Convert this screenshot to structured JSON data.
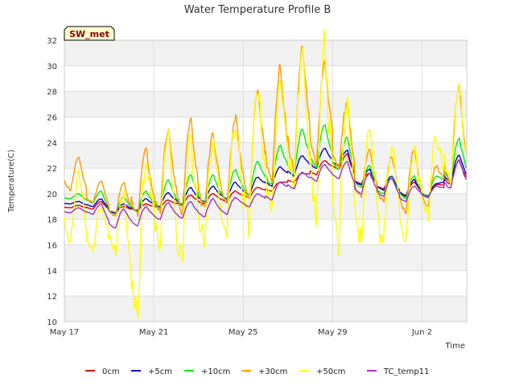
{
  "chart_data": {
    "type": "line",
    "title": "Water Temperature Profile B",
    "xlabel": "Time",
    "ylabel": "Temperature(C)",
    "badge": "SW_met",
    "ylim": [
      10,
      32
    ],
    "yticks": [
      10,
      12,
      14,
      16,
      18,
      20,
      22,
      24,
      26,
      28,
      30,
      32
    ],
    "xlim": [
      "2016-05-17",
      "2016-06-04"
    ],
    "xticks": [
      {
        "date": "2016-05-17",
        "label": "May 17"
      },
      {
        "date": "2016-05-21",
        "label": "May 21"
      },
      {
        "date": "2016-05-25",
        "label": "May 25"
      },
      {
        "date": "2016-05-29",
        "label": "May 29"
      },
      {
        "date": "2016-06-02",
        "label": "Jun 2"
      }
    ],
    "grid": true,
    "legend_position": "bottom",
    "x": [
      "2016-05-17",
      "2016-05-18",
      "2016-05-19",
      "2016-05-20",
      "2016-05-21",
      "2016-05-22",
      "2016-05-23",
      "2016-05-24",
      "2016-05-25",
      "2016-05-26",
      "2016-05-27",
      "2016-05-28",
      "2016-05-29",
      "2016-05-30",
      "2016-05-31",
      "2016-06-01",
      "2016-06-02",
      "2016-06-03"
    ],
    "series": [
      {
        "name": "0cm",
        "color": "#dd0000",
        "min": [
          18.9,
          18.8,
          18.5,
          18.7,
          18.9,
          19.1,
          19.2,
          19.4,
          19.7,
          20.2,
          20.9,
          21.5,
          21.9,
          20.8,
          20.4,
          19.9,
          19.8,
          20.7
        ],
        "max": [
          19.1,
          19.4,
          19.0,
          19.2,
          19.5,
          19.9,
          20.0,
          20.2,
          20.5,
          20.9,
          21.6,
          22.6,
          23.1,
          21.6,
          21.2,
          20.9,
          20.7,
          22.6
        ]
      },
      {
        "name": "+5cm",
        "color": "#0000cc",
        "min": [
          19.2,
          19.0,
          18.5,
          18.7,
          19.0,
          19.2,
          19.4,
          19.6,
          19.9,
          20.6,
          21.4,
          22.0,
          22.2,
          20.7,
          20.3,
          19.8,
          19.8,
          20.9
        ],
        "max": [
          19.4,
          19.6,
          19.2,
          19.6,
          20.1,
          20.5,
          20.6,
          20.9,
          21.3,
          22.1,
          23.0,
          23.6,
          23.4,
          21.9,
          21.4,
          21.1,
          20.8,
          23.0
        ]
      },
      {
        "name": "+10cm",
        "color": "#00ee00",
        "min": [
          19.6,
          19.3,
          18.3,
          18.6,
          18.9,
          19.1,
          19.3,
          19.5,
          19.9,
          20.7,
          21.5,
          22.1,
          21.9,
          20.5,
          20.0,
          19.6,
          19.7,
          21.0
        ],
        "max": [
          20.0,
          20.2,
          19.8,
          20.2,
          21.1,
          21.5,
          21.5,
          21.9,
          22.5,
          23.8,
          25.0,
          25.4,
          24.4,
          22.2,
          21.3,
          21.4,
          21.4,
          24.3
        ]
      },
      {
        "name": "+30cm",
        "color": "#ff9900",
        "min": [
          20.3,
          19.3,
          18.2,
          18.3,
          18.5,
          18.6,
          18.8,
          19.0,
          19.5,
          20.8,
          21.8,
          22.3,
          22.0,
          19.7,
          19.4,
          18.6,
          19.0,
          20.6
        ],
        "max": [
          22.9,
          21.0,
          20.8,
          23.4,
          25.1,
          25.7,
          24.6,
          26.0,
          28.0,
          29.8,
          31.7,
          30.3,
          27.2,
          23.6,
          22.9,
          23.5,
          22.2,
          28.3
        ]
      },
      {
        "name": "+50cm",
        "color": "#ffff00",
        "min": [
          16.1,
          15.6,
          15.4,
          10.8,
          16.4,
          15.0,
          16.6,
          17.0,
          17.4,
          18.7,
          21.3,
          18.6,
          16.3,
          16.4,
          16.0,
          16.6,
          18.2,
          20.9
        ],
        "max": [
          21.8,
          19.0,
          20.0,
          22.9,
          24.5,
          24.1,
          23.8,
          25.9,
          28.7,
          28.5,
          30.8,
          31.6,
          27.5,
          25.3,
          24.1,
          23.3,
          24.5,
          28.5
        ]
      },
      {
        "name": "TC_temp11",
        "color": "#9933cc",
        "min": [
          18.5,
          18.4,
          17.3,
          17.5,
          18.0,
          18.1,
          18.2,
          18.4,
          19.0,
          19.5,
          20.4,
          21.0,
          21.2,
          20.0,
          19.8,
          19.4,
          19.7,
          20.4
        ],
        "max": [
          18.9,
          19.2,
          18.8,
          19.0,
          19.3,
          19.4,
          19.6,
          19.7,
          20.0,
          20.9,
          21.7,
          22.3,
          22.5,
          21.6,
          21.2,
          20.6,
          20.6,
          22.6
        ]
      }
    ]
  }
}
